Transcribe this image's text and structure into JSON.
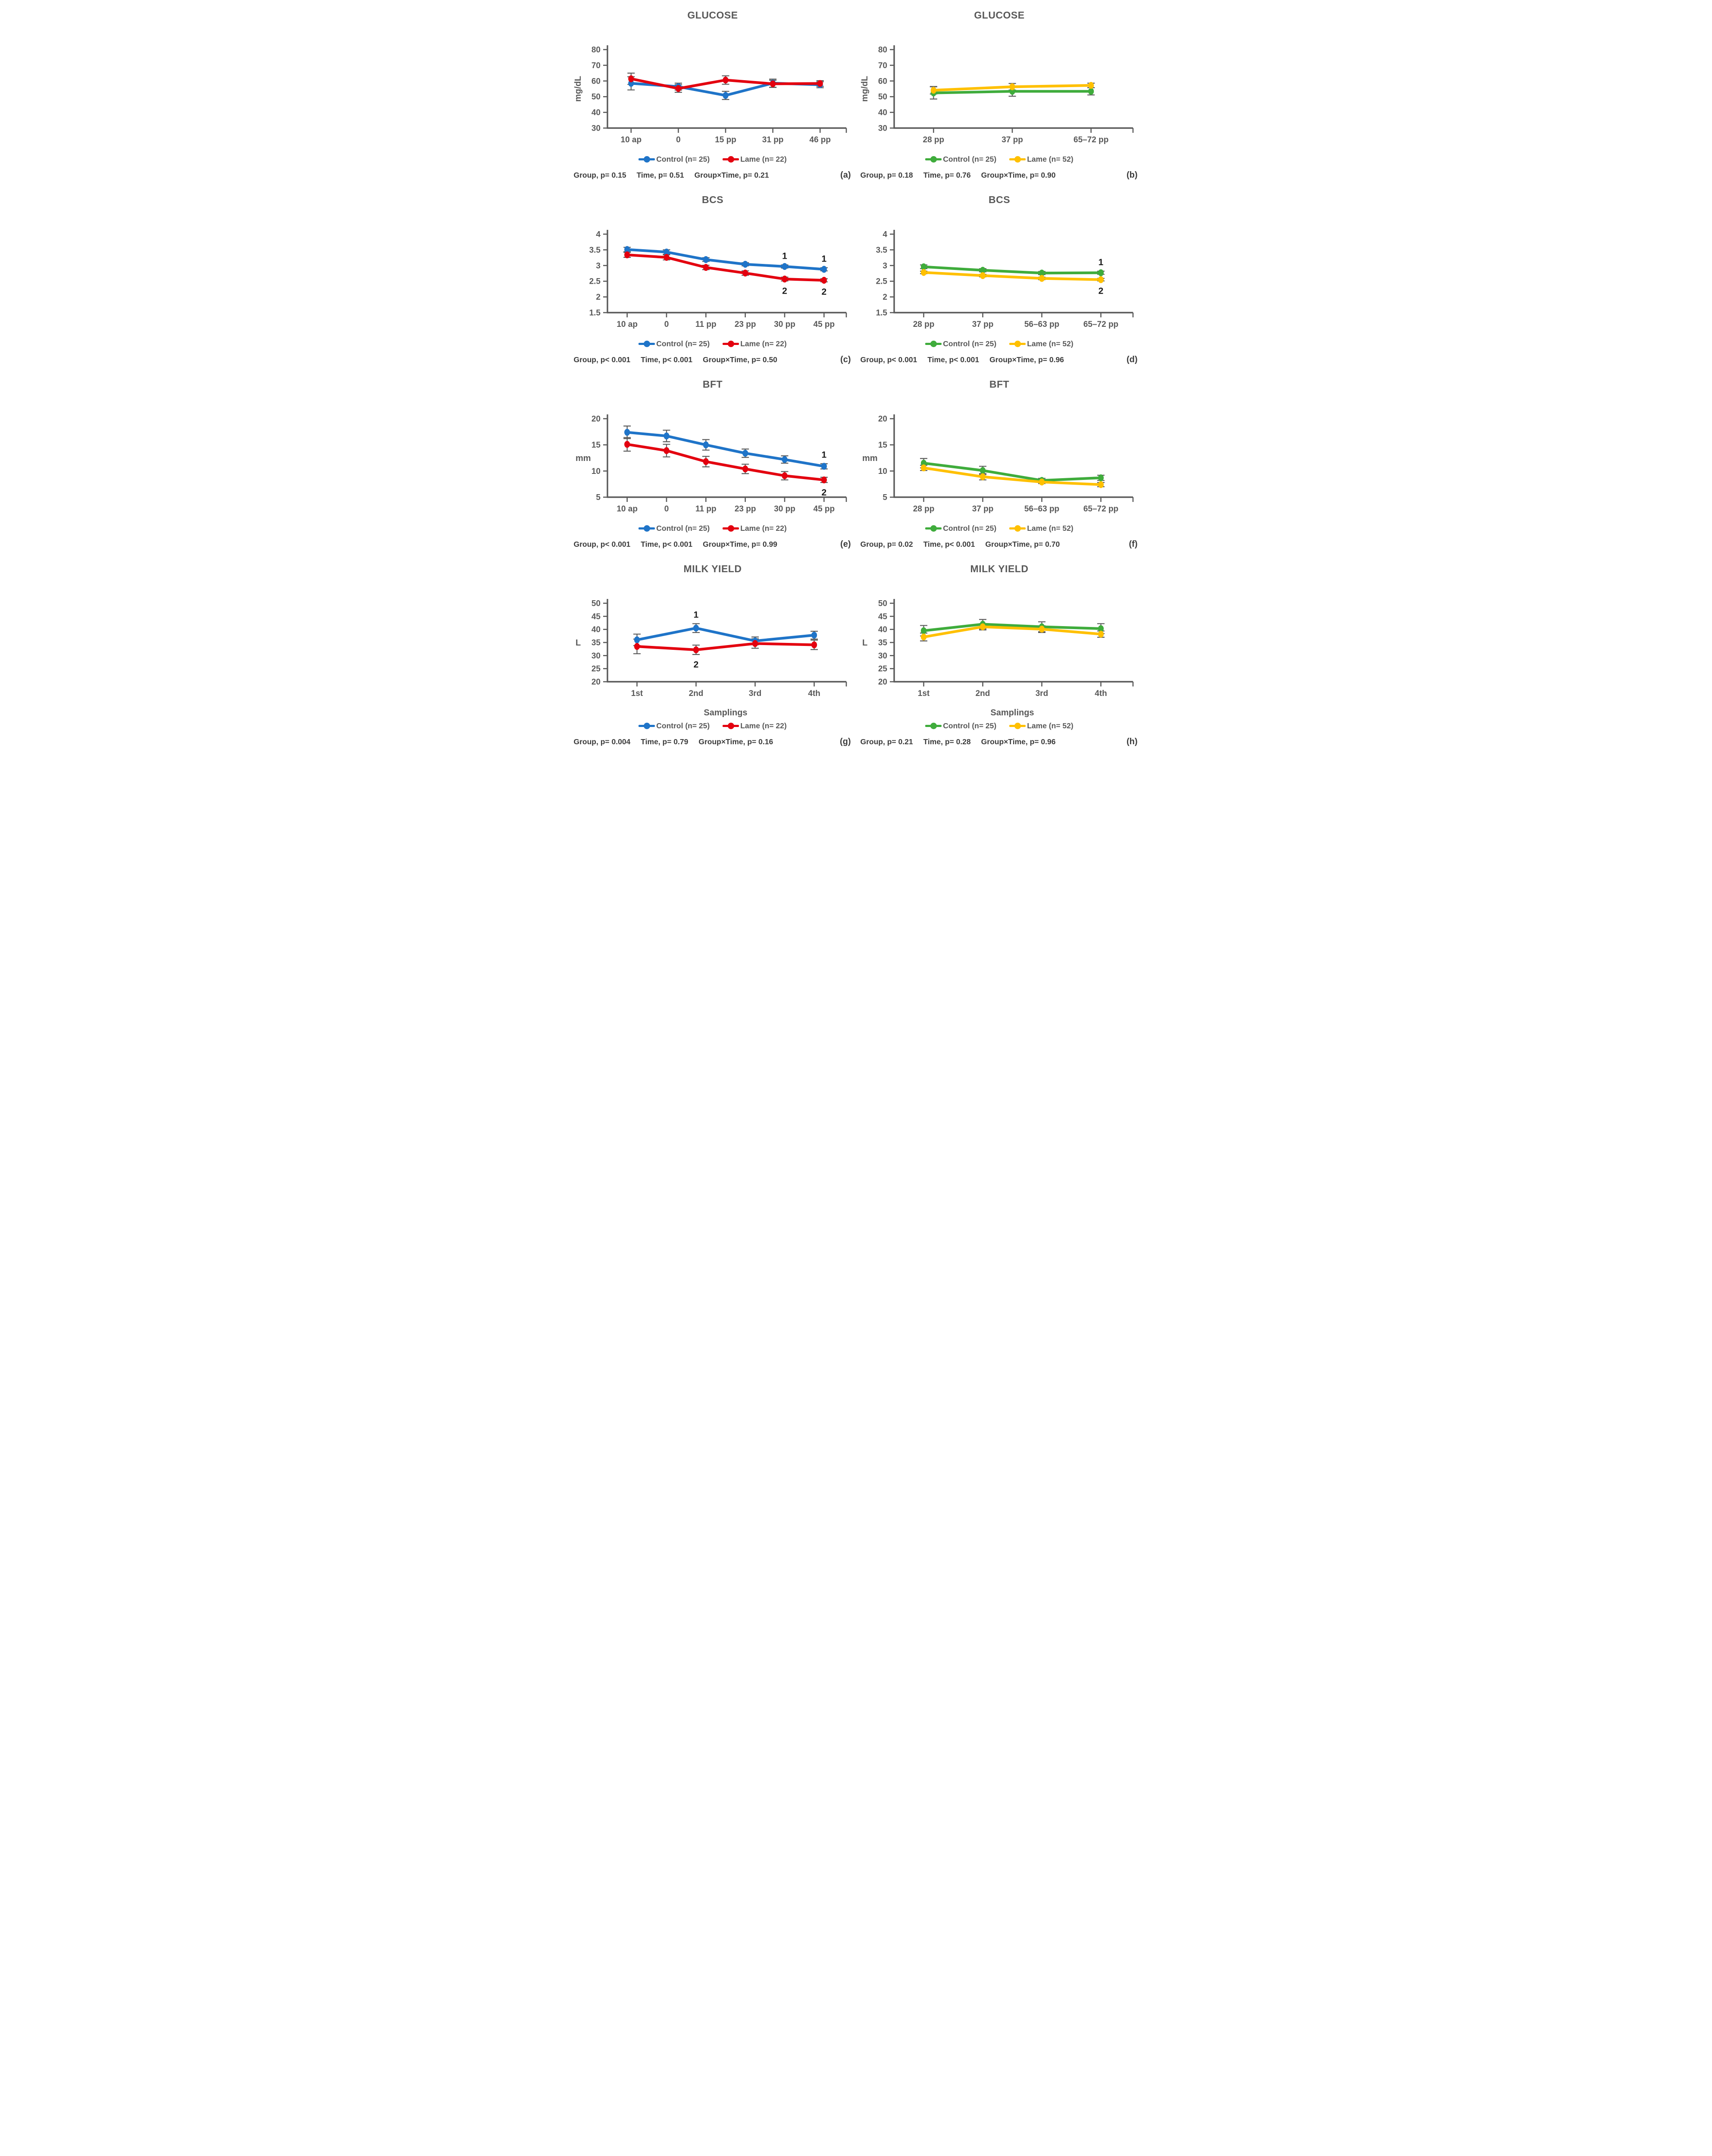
{
  "colors": {
    "blue": "#1F74C8",
    "red": "#E3000F",
    "green": "#3FAC3C",
    "yellow": "#FFC000",
    "axis": "#595959",
    "tick_text": "#595959",
    "title_text": "#595959",
    "stats_text": "#3C3C3C",
    "error_bar": "#595959",
    "annotation": "#1A1A1A"
  },
  "legend_position": "bottom",
  "chart_data": [
    {
      "type": "line",
      "letter": "(a)",
      "title": "GLUCOSE",
      "ylabel": "mg/dL",
      "ylabel_rotated": true,
      "xlabel": "",
      "categories": [
        "10 ap",
        "0",
        "15 pp",
        "31 pp",
        "46 pp"
      ],
      "ylim": [
        30,
        80
      ],
      "ystep": 10,
      "grid": false,
      "series": [
        {
          "name": "Control (n= 25)",
          "color": "blue",
          "values": [
            58.5,
            56.4,
            50.8,
            58.6,
            57.6
          ],
          "errors": [
            4.2,
            2.2,
            2.6,
            2.6,
            1.9
          ]
        },
        {
          "name": "Lame (n= 22)",
          "color": "red",
          "values": [
            61.4,
            55.2,
            60.6,
            58.2,
            58.4
          ],
          "errors": [
            3.6,
            2.4,
            2.7,
            2.3,
            1.8
          ]
        }
      ],
      "annotations": [],
      "stats": [
        "Group, p= 0.15",
        "Time, p= 0.51",
        "Group×Time, p= 0.21"
      ]
    },
    {
      "type": "line",
      "letter": "(b)",
      "title": "GLUCOSE",
      "ylabel": "mg/dL",
      "ylabel_rotated": true,
      "xlabel": "",
      "categories": [
        "28 pp",
        "37 pp",
        "65–72 pp"
      ],
      "ylim": [
        30,
        80
      ],
      "ystep": 10,
      "grid": false,
      "series": [
        {
          "name": "Control (n= 25)",
          "color": "green",
          "values": [
            52.4,
            53.4,
            53.4
          ],
          "errors": [
            3.9,
            3.1,
            2.3
          ]
        },
        {
          "name": "Lame (n= 52)",
          "color": "yellow",
          "values": [
            54.1,
            56.3,
            57.2
          ],
          "errors": [
            2.4,
            2.1,
            1.4
          ]
        }
      ],
      "annotations": [],
      "stats": [
        "Group, p= 0.18",
        "Time, p= 0.76",
        "Group×Time, p= 0.90"
      ]
    },
    {
      "type": "line",
      "letter": "(c)",
      "title": "BCS",
      "ylabel": "",
      "ylabel_rotated": false,
      "xlabel": "",
      "categories": [
        "10 ap",
        "0",
        "11 pp",
        "23 pp",
        "30 pp",
        "45 pp"
      ],
      "ylim": [
        1.5,
        4
      ],
      "ystep": 0.5,
      "grid": false,
      "series": [
        {
          "name": "Control (n= 25)",
          "color": "blue",
          "values": [
            3.51,
            3.43,
            3.19,
            3.04,
            2.97,
            2.88
          ],
          "errors": [
            0.07,
            0.07,
            0.06,
            0.05,
            0.05,
            0.05
          ]
        },
        {
          "name": "Lame (n= 22)",
          "color": "red",
          "values": [
            3.34,
            3.26,
            2.94,
            2.76,
            2.57,
            2.53
          ],
          "errors": [
            0.08,
            0.08,
            0.07,
            0.07,
            0.06,
            0.05
          ]
        }
      ],
      "annotations": [
        {
          "series": 0,
          "index": 4,
          "text": "1",
          "pos": "above"
        },
        {
          "series": 0,
          "index": 5,
          "text": "1",
          "pos": "above"
        },
        {
          "series": 1,
          "index": 4,
          "text": "2",
          "pos": "below"
        },
        {
          "series": 1,
          "index": 5,
          "text": "2",
          "pos": "below"
        }
      ],
      "stats": [
        "Group, p< 0.001",
        "Time, p< 0.001",
        "Group×Time, p= 0.50"
      ]
    },
    {
      "type": "line",
      "letter": "(d)",
      "title": "BCS",
      "ylabel": "",
      "ylabel_rotated": false,
      "xlabel": "",
      "categories": [
        "28 pp",
        "37 pp",
        "56–63 pp",
        "65–72 pp"
      ],
      "ylim": [
        1.5,
        4
      ],
      "ystep": 0.5,
      "grid": false,
      "series": [
        {
          "name": "Control (n= 25)",
          "color": "green",
          "values": [
            2.96,
            2.85,
            2.76,
            2.77
          ],
          "errors": [
            0.06,
            0.05,
            0.05,
            0.05
          ]
        },
        {
          "name": "Lame (n= 52)",
          "color": "yellow",
          "values": [
            2.78,
            2.68,
            2.59,
            2.55
          ],
          "errors": [
            0.04,
            0.04,
            0.04,
            0.04
          ]
        }
      ],
      "annotations": [
        {
          "series": 0,
          "index": 3,
          "text": "1",
          "pos": "above"
        },
        {
          "series": 1,
          "index": 3,
          "text": "2",
          "pos": "below"
        }
      ],
      "stats": [
        "Group, p< 0.001",
        "Time, p< 0.001",
        "Group×Time, p= 0.96"
      ]
    },
    {
      "type": "line",
      "letter": "(e)",
      "title": "BFT",
      "ylabel": "mm",
      "ylabel_rotated": false,
      "xlabel": "",
      "categories": [
        "10 ap",
        "0",
        "11 pp",
        "23 pp",
        "30 pp",
        "45 pp"
      ],
      "ylim": [
        5,
        20
      ],
      "ystep": 5,
      "grid": false,
      "series": [
        {
          "name": "Control (n= 25)",
          "color": "blue",
          "values": [
            17.4,
            16.7,
            15.0,
            13.4,
            12.2,
            10.9
          ],
          "errors": [
            1.2,
            1.1,
            1.0,
            0.8,
            0.7,
            0.5
          ]
        },
        {
          "name": "Lame (n= 22)",
          "color": "red",
          "values": [
            15.1,
            13.9,
            11.8,
            10.4,
            9.1,
            8.3
          ],
          "errors": [
            1.3,
            1.2,
            1.0,
            0.9,
            0.8,
            0.5
          ]
        }
      ],
      "annotations": [
        {
          "series": 0,
          "index": 5,
          "text": "1",
          "pos": "above"
        },
        {
          "series": 1,
          "index": 5,
          "text": "2",
          "pos": "below"
        }
      ],
      "stats": [
        "Group, p< 0.001",
        "Time, p< 0.001",
        "Group×Time, p= 0.99"
      ]
    },
    {
      "type": "line",
      "letter": "(f)",
      "title": "BFT",
      "ylabel": "mm",
      "ylabel_rotated": false,
      "xlabel": "",
      "categories": [
        "28 pp",
        "37 pp",
        "56–63 pp",
        "65–72 pp"
      ],
      "ylim": [
        5,
        20
      ],
      "ystep": 5,
      "grid": false,
      "series": [
        {
          "name": "Control (n= 25)",
          "color": "green",
          "values": [
            11.5,
            10.1,
            8.2,
            8.7
          ],
          "errors": [
            0.9,
            0.8,
            0.4,
            0.5
          ]
        },
        {
          "name": "Lame (n= 52)",
          "color": "yellow",
          "values": [
            10.6,
            8.9,
            7.9,
            7.4
          ],
          "errors": [
            0.5,
            0.6,
            0.3,
            0.4
          ]
        }
      ],
      "annotations": [],
      "stats": [
        "Group, p= 0.02",
        "Time, p< 0.001",
        "Group×Time, p= 0.70"
      ]
    },
    {
      "type": "line",
      "letter": "(g)",
      "title": "MILK YIELD",
      "ylabel": "L",
      "ylabel_rotated": false,
      "xlabel": "Samplings",
      "categories": [
        "1st",
        "2nd",
        "3rd",
        "4th"
      ],
      "ylim": [
        20,
        50
      ],
      "ystep": 5,
      "grid": false,
      "series": [
        {
          "name": "Control (n= 25)",
          "color": "blue",
          "values": [
            36.0,
            40.5,
            35.6,
            37.8
          ],
          "errors": [
            2.2,
            1.7,
            1.5,
            1.5
          ]
        },
        {
          "name": "Lame (n= 22)",
          "color": "red",
          "values": [
            33.5,
            32.2,
            34.6,
            34.1
          ],
          "errors": [
            2.8,
            1.8,
            1.8,
            1.8
          ]
        }
      ],
      "annotations": [
        {
          "series": 0,
          "index": 1,
          "text": "1",
          "pos": "above"
        },
        {
          "series": 1,
          "index": 1,
          "text": "2",
          "pos": "below"
        }
      ],
      "stats": [
        "Group, p= 0.004",
        "Time, p= 0.79",
        "Group×Time, p= 0.16"
      ]
    },
    {
      "type": "line",
      "letter": "(h)",
      "title": "MILK YIELD",
      "ylabel": "L",
      "ylabel_rotated": false,
      "xlabel": "Samplings",
      "categories": [
        "1st",
        "2nd",
        "3rd",
        "4th"
      ],
      "ylim": [
        20,
        50
      ],
      "ystep": 5,
      "grid": false,
      "series": [
        {
          "name": "Control (n= 25)",
          "color": "green",
          "values": [
            39.5,
            42.0,
            41.0,
            40.3
          ],
          "errors": [
            2.0,
            1.8,
            1.9,
            1.9
          ]
        },
        {
          "name": "Lame (n= 52)",
          "color": "yellow",
          "values": [
            37.1,
            41.0,
            40.1,
            38.2
          ],
          "errors": [
            1.5,
            1.2,
            1.3,
            1.2
          ]
        }
      ],
      "annotations": [],
      "stats": [
        "Group, p= 0.21",
        "Time, p= 0.28",
        "Group×Time, p= 0.96"
      ]
    }
  ]
}
